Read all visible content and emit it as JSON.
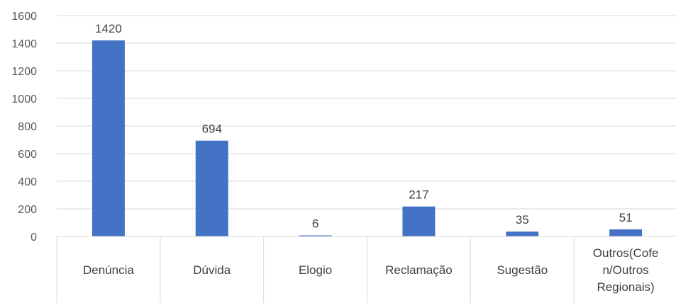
{
  "chart_data": {
    "type": "bar",
    "categories": [
      "Denúncia",
      "Dúvida",
      "Elogio",
      "Reclamação",
      "Sugestão",
      "Outros(Cofen/Outros Regionais)"
    ],
    "category_label_lines": [
      [
        "Denúncia"
      ],
      [
        "Dúvida"
      ],
      [
        "Elogio"
      ],
      [
        "Reclamação"
      ],
      [
        "Sugestão"
      ],
      [
        "Outros(Cofe",
        "n/Outros",
        "Regionais)"
      ]
    ],
    "values": [
      1420,
      694,
      6,
      217,
      35,
      51
    ],
    "data_labels": [
      "1420",
      "694",
      "6",
      "217",
      "35",
      "51"
    ],
    "yticks": [
      0,
      200,
      400,
      600,
      800,
      1000,
      1200,
      1400,
      1600
    ],
    "ylim": [
      0,
      1600
    ],
    "grid": true,
    "bar_color": "#4472c4",
    "title": "",
    "xlabel": "",
    "ylabel": ""
  }
}
